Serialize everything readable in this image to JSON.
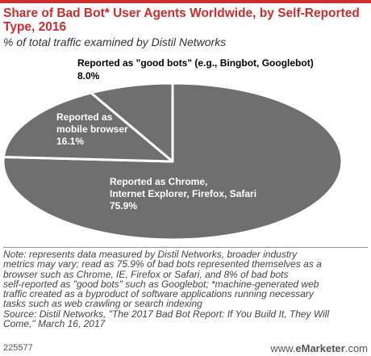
{
  "title": "Share of Bad Bot* User Agents Worldwide, by Self-Reported Type, 2016",
  "subtitle": "% of total traffic examined by Distil Networks",
  "chart_data": {
    "type": "pie",
    "title": "Share of Bad Bot* User Agents Worldwide, by Self-Reported Type, 2016",
    "subtitle": "% of total traffic examined by Distil Networks",
    "slices": [
      {
        "label_lines": [
          "Reported as Chrome,",
          "Internet Explorer, Firefox, Safari"
        ],
        "value": 75.9,
        "value_label": "75.9%"
      },
      {
        "label_lines": [
          "Reported as",
          "mobile browser"
        ],
        "value": 16.1,
        "value_label": "16.1%"
      },
      {
        "label_lines": [
          "Reported as \"good bots\" (e.g., Bingbot, Googlebot)"
        ],
        "value": 8.0,
        "value_label": "8.0%"
      }
    ],
    "colors": {
      "slice": "#6f6f6f",
      "border": "#ffffff",
      "label": "#ffffff",
      "outside_label": "#000000"
    }
  },
  "note_lines": [
    "Note: represents data measured by Distil Networks, broader industry",
    "metrics may vary; read as 75.9% of bad bots represented themselves as a",
    "browser such as Chrome, IE, Firefox or Safari, and 8% of bad bots",
    "self-reported as \"good bots\" such as Googlebot; *machine-generated web",
    "traffic created as a byproduct of software applications running necessary",
    "tasks such as web crawling or search indexing",
    "Source: Distil Networks, \"The 2017 Bad Bot Report: If You Build It, They Will",
    "Come,\" March 16, 2017"
  ],
  "footer": {
    "chart_id": "225577",
    "brand_prefix": "www.",
    "brand_name": "eMarketer",
    "brand_suffix": ".com"
  }
}
